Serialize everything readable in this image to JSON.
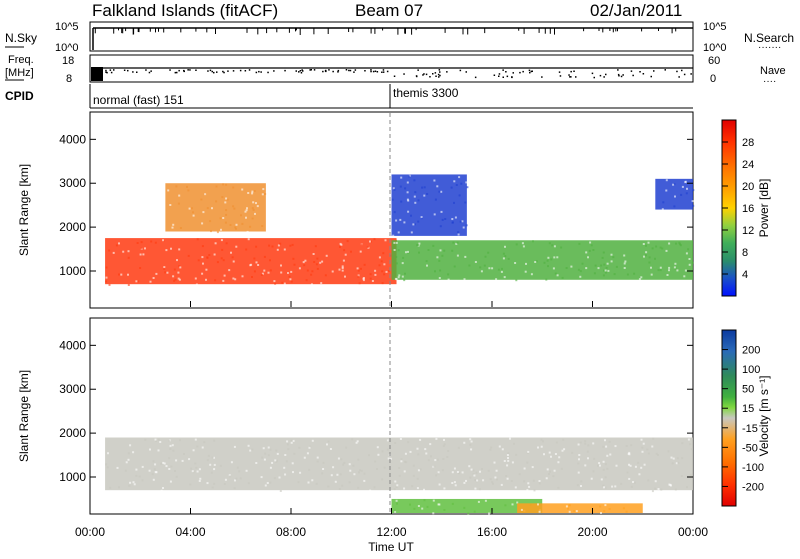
{
  "header": {
    "station": "Falkland Islands (fitACF)",
    "beam": "Beam 07",
    "date": "02/Jan/2011"
  },
  "panels": {
    "nsky_label": "N.Sky",
    "nsearch_label": "N.Search",
    "nsearch_legend": "·······",
    "freq_label_1": "Freq.",
    "freq_label_2": "[MHz]",
    "nave_label": "Nave",
    "nave_legend": "····",
    "cpid_label": "CPID",
    "noise_ticks_left": [
      "10^5",
      "10^0"
    ],
    "noise_ticks_right": [
      "10^5",
      "10^0"
    ],
    "freq_ticks": [
      "18",
      "8"
    ],
    "nave_ticks": [
      "60",
      "0"
    ],
    "cpid_modes": [
      "normal (fast) 151",
      "themis 3300"
    ]
  },
  "chart_data": [
    {
      "type": "heatmap",
      "title": "",
      "ylabel": "Slant Range [km]",
      "ylim": [
        180,
        4600
      ],
      "yticks": [
        1000,
        2000,
        3000,
        4000
      ],
      "xlim_hours": [
        0,
        24
      ],
      "colorbar": {
        "label": "Power [dB]",
        "ticks": [
          "28",
          "24",
          "20",
          "16",
          "12",
          "8",
          "4"
        ],
        "colors": [
          "#e00000",
          "#ff3000",
          "#ff7800",
          "#ffa500",
          "#ffd200",
          "#90d040",
          "#3fae5a",
          "#2a8e6a",
          "#1a50c8",
          "#0010ff"
        ]
      },
      "bands": [
        {
          "t0": 0.6,
          "t1": 12.2,
          "r0": 700,
          "r1": 1750,
          "color": "#ff3a10"
        },
        {
          "t0": 12.0,
          "t1": 24.0,
          "r0": 800,
          "r1": 1700,
          "color": "#50b040"
        },
        {
          "t0": 3.0,
          "t1": 7.0,
          "r0": 1900,
          "r1": 3000,
          "color": "#f09030"
        },
        {
          "t0": 12.0,
          "t1": 15.0,
          "r0": 1800,
          "r1": 3200,
          "color": "#2040d0"
        },
        {
          "t0": 22.5,
          "t1": 24.0,
          "r0": 2400,
          "r1": 3100,
          "color": "#2040d0"
        }
      ]
    },
    {
      "type": "heatmap",
      "title": "",
      "ylabel": "Slant Range [km]",
      "xlabel": "Time UT",
      "ylim": [
        180,
        4600
      ],
      "yticks": [
        1000,
        2000,
        3000,
        4000
      ],
      "xlim_hours": [
        0,
        24
      ],
      "xticks": [
        "00:00",
        "04:00",
        "08:00",
        "12:00",
        "16:00",
        "20:00",
        "00:00"
      ],
      "colorbar": {
        "label": "Velocity [m s⁻¹]",
        "ticks": [
          "200",
          "100",
          "50",
          "15",
          "-15",
          "-50",
          "-100",
          "-200"
        ],
        "colors": [
          "#0a3aa0",
          "#2a6ab8",
          "#2e8a5a",
          "#40b040",
          "#80d840",
          "#c8c8c0",
          "#ffa020",
          "#ff7000",
          "#ff3000",
          "#e00000"
        ]
      },
      "bands": [
        {
          "t0": 0.6,
          "t1": 24.0,
          "r0": 700,
          "r1": 1900,
          "color": "#c8c8c0"
        },
        {
          "t0": 12.0,
          "t1": 18.0,
          "r0": 180,
          "r1": 500,
          "color": "#60c040"
        },
        {
          "t0": 17.0,
          "t1": 22.0,
          "r0": 180,
          "r1": 400,
          "color": "#ffa020"
        }
      ]
    }
  ]
}
